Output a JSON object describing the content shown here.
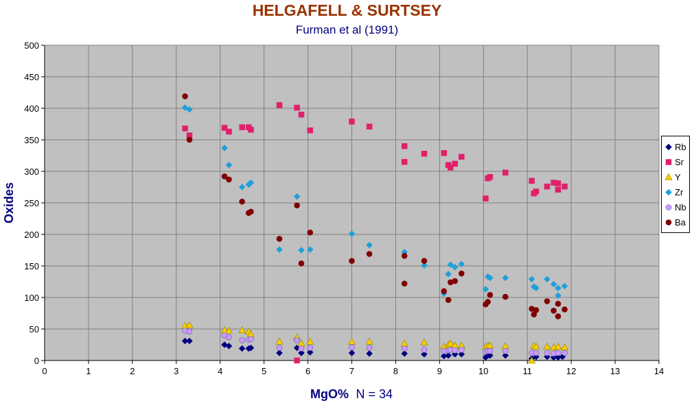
{
  "chart_data": {
    "type": "scatter",
    "title": "HELGAFELL & SURTSEY",
    "subtitle": "Furman et al (1991)",
    "xlabel": "MgO%",
    "xlabel_note": "N = 34",
    "ylabel": "Oxides",
    "xlim": [
      0,
      14
    ],
    "ylim": [
      0,
      500
    ],
    "xticks": [
      "0",
      "1",
      "2",
      "3",
      "4",
      "5",
      "6",
      "7",
      "8",
      "9",
      "10",
      "11",
      "12",
      "13",
      "14"
    ],
    "yticks": [
      "0",
      "50",
      "100",
      "150",
      "200",
      "250",
      "300",
      "350",
      "400",
      "450",
      "500"
    ],
    "grid": true,
    "legend_position": "right",
    "series": [
      {
        "name": "Rb",
        "color": "#000080",
        "marker": "diamond",
        "points": [
          [
            3.2,
            31
          ],
          [
            3.3,
            31
          ],
          [
            4.1,
            25
          ],
          [
            4.2,
            23
          ],
          [
            4.5,
            19
          ],
          [
            4.65,
            19
          ],
          [
            4.7,
            20
          ],
          [
            5.35,
            12
          ],
          [
            5.75,
            20
          ],
          [
            5.85,
            12
          ],
          [
            6.05,
            13
          ],
          [
            7.0,
            12
          ],
          [
            7.4,
            11
          ],
          [
            8.2,
            11
          ],
          [
            8.65,
            10
          ],
          [
            9.1,
            7
          ],
          [
            9.2,
            8
          ],
          [
            9.35,
            10
          ],
          [
            9.5,
            10
          ],
          [
            10.05,
            5
          ],
          [
            10.1,
            8
          ],
          [
            10.15,
            8
          ],
          [
            10.5,
            8
          ],
          [
            11.1,
            3
          ],
          [
            11.2,
            6
          ],
          [
            11.45,
            6
          ],
          [
            11.6,
            5
          ],
          [
            11.7,
            5
          ],
          [
            11.8,
            6
          ]
        ]
      },
      {
        "name": "Sr",
        "color": "#e0206a",
        "marker": "square",
        "points": [
          [
            3.2,
            368
          ],
          [
            3.3,
            357
          ],
          [
            4.1,
            369
          ],
          [
            4.2,
            363
          ],
          [
            4.5,
            370
          ],
          [
            4.65,
            370
          ],
          [
            4.7,
            366
          ],
          [
            5.35,
            405
          ],
          [
            5.75,
            401
          ],
          [
            5.85,
            390
          ],
          [
            6.05,
            365
          ],
          [
            7.0,
            379
          ],
          [
            7.4,
            371
          ],
          [
            5.75,
            0
          ],
          [
            8.2,
            340
          ],
          [
            8.2,
            315
          ],
          [
            8.65,
            328
          ],
          [
            9.1,
            329
          ],
          [
            9.2,
            310
          ],
          [
            9.25,
            306
          ],
          [
            9.35,
            312
          ],
          [
            9.5,
            323
          ],
          [
            10.05,
            257
          ],
          [
            10.1,
            289
          ],
          [
            10.15,
            291
          ],
          [
            10.5,
            298
          ],
          [
            11.1,
            285
          ],
          [
            11.15,
            265
          ],
          [
            11.2,
            268
          ],
          [
            11.45,
            276
          ],
          [
            11.6,
            282
          ],
          [
            11.7,
            271
          ],
          [
            11.7,
            281
          ],
          [
            11.85,
            276
          ]
        ]
      },
      {
        "name": "Y",
        "color": "#ffcc00",
        "marker": "triangle",
        "points": [
          [
            3.2,
            55
          ],
          [
            3.3,
            56
          ],
          [
            4.1,
            48
          ],
          [
            4.2,
            47
          ],
          [
            4.5,
            48
          ],
          [
            4.65,
            46
          ],
          [
            4.7,
            42
          ],
          [
            5.35,
            30
          ],
          [
            5.75,
            37
          ],
          [
            5.85,
            27
          ],
          [
            6.05,
            30
          ],
          [
            7.0,
            30
          ],
          [
            7.4,
            30
          ],
          [
            8.2,
            27
          ],
          [
            8.65,
            29
          ],
          [
            9.1,
            22
          ],
          [
            9.2,
            25
          ],
          [
            9.25,
            27
          ],
          [
            9.35,
            24
          ],
          [
            9.5,
            24
          ],
          [
            10.05,
            22
          ],
          [
            10.1,
            23
          ],
          [
            10.15,
            24
          ],
          [
            10.5,
            23
          ],
          [
            11.1,
            0
          ],
          [
            11.15,
            23
          ],
          [
            11.2,
            22
          ],
          [
            11.45,
            22
          ],
          [
            11.6,
            21
          ],
          [
            11.7,
            22
          ],
          [
            11.85,
            21
          ]
        ]
      },
      {
        "name": "Zr",
        "color": "#1ea0d8",
        "marker": "diamond",
        "points": [
          [
            3.2,
            401
          ],
          [
            3.3,
            398
          ],
          [
            4.1,
            337
          ],
          [
            4.2,
            310
          ],
          [
            4.5,
            275
          ],
          [
            4.65,
            279
          ],
          [
            4.7,
            282
          ],
          [
            5.35,
            176
          ],
          [
            5.75,
            260
          ],
          [
            5.85,
            175
          ],
          [
            6.05,
            176
          ],
          [
            7.0,
            201
          ],
          [
            7.4,
            183
          ],
          [
            8.2,
            172
          ],
          [
            8.65,
            151
          ],
          [
            9.1,
            106
          ],
          [
            9.2,
            137
          ],
          [
            9.25,
            152
          ],
          [
            9.35,
            148
          ],
          [
            9.5,
            153
          ],
          [
            10.05,
            113
          ],
          [
            10.1,
            133
          ],
          [
            10.15,
            131
          ],
          [
            10.5,
            131
          ],
          [
            11.1,
            129
          ],
          [
            11.15,
            117
          ],
          [
            11.2,
            115
          ],
          [
            11.45,
            129
          ],
          [
            11.6,
            121
          ],
          [
            11.7,
            103
          ],
          [
            11.7,
            115
          ],
          [
            11.85,
            118
          ]
        ]
      },
      {
        "name": "Nb",
        "color": "#cc99ff",
        "marker": "circle",
        "points": [
          [
            3.2,
            47
          ],
          [
            3.3,
            46
          ],
          [
            4.1,
            40
          ],
          [
            4.2,
            37
          ],
          [
            4.5,
            32
          ],
          [
            4.65,
            33
          ],
          [
            4.7,
            34
          ],
          [
            5.35,
            20
          ],
          [
            5.75,
            32
          ],
          [
            5.85,
            19
          ],
          [
            6.05,
            20
          ],
          [
            7.0,
            21
          ],
          [
            7.4,
            20
          ],
          [
            8.2,
            19
          ],
          [
            8.65,
            17
          ],
          [
            9.1,
            15
          ],
          [
            9.2,
            16
          ],
          [
            9.25,
            17
          ],
          [
            9.35,
            16
          ],
          [
            9.5,
            17
          ],
          [
            10.05,
            14
          ],
          [
            10.1,
            15
          ],
          [
            10.15,
            15
          ],
          [
            10.5,
            15
          ],
          [
            11.1,
            12
          ],
          [
            11.2,
            12
          ],
          [
            11.45,
            12
          ],
          [
            11.6,
            11
          ],
          [
            11.7,
            12
          ],
          [
            11.85,
            12
          ]
        ]
      },
      {
        "name": "Ba",
        "color": "#800000",
        "marker": "circle",
        "points": [
          [
            3.2,
            419
          ],
          [
            3.3,
            350
          ],
          [
            4.1,
            292
          ],
          [
            4.2,
            287
          ],
          [
            4.5,
            252
          ],
          [
            4.65,
            234
          ],
          [
            4.7,
            236
          ],
          [
            5.35,
            193
          ],
          [
            5.75,
            246
          ],
          [
            5.85,
            154
          ],
          [
            6.05,
            203
          ],
          [
            7.0,
            158
          ],
          [
            7.4,
            169
          ],
          [
            8.2,
            166
          ],
          [
            8.2,
            122
          ],
          [
            8.65,
            158
          ],
          [
            9.1,
            110
          ],
          [
            9.2,
            96
          ],
          [
            9.25,
            124
          ],
          [
            9.35,
            126
          ],
          [
            9.5,
            138
          ],
          [
            10.05,
            89
          ],
          [
            10.1,
            93
          ],
          [
            10.15,
            104
          ],
          [
            10.5,
            101
          ],
          [
            11.1,
            82
          ],
          [
            11.15,
            73
          ],
          [
            11.2,
            80
          ],
          [
            11.45,
            94
          ],
          [
            11.6,
            79
          ],
          [
            11.7,
            70
          ],
          [
            11.7,
            90
          ],
          [
            11.85,
            81
          ]
        ]
      }
    ]
  }
}
